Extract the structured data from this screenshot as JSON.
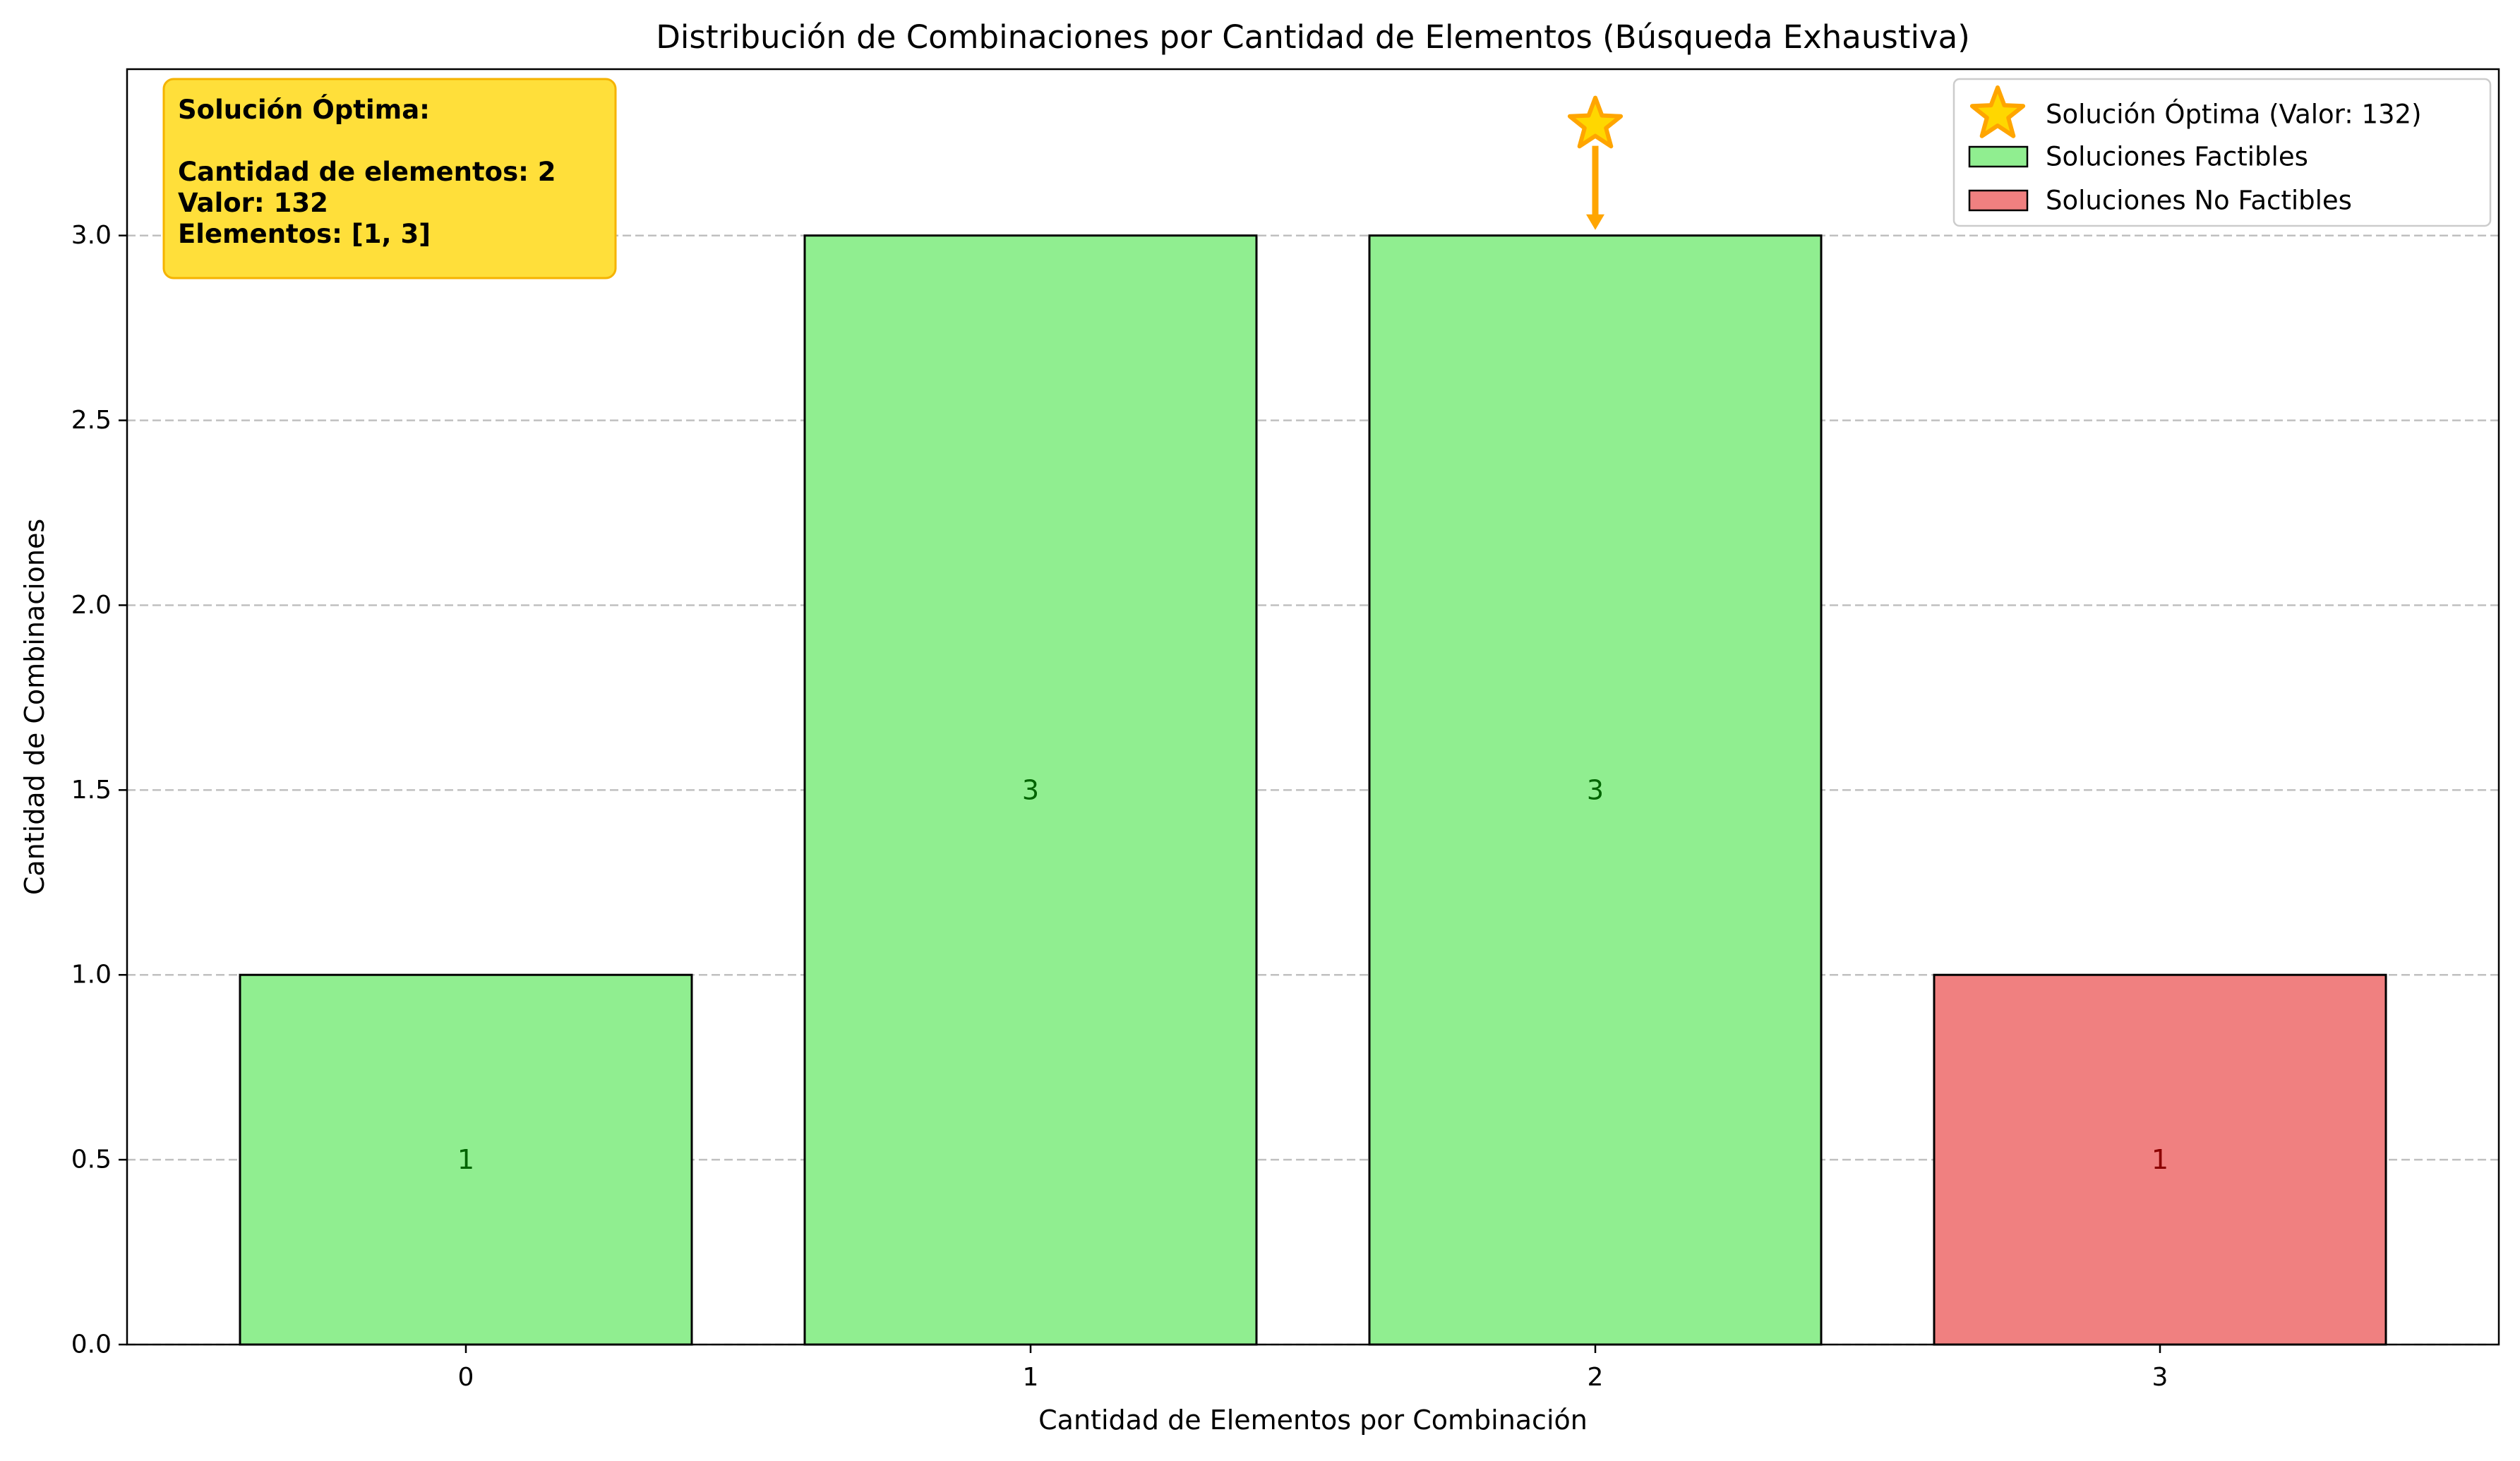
{
  "chart_data": {
    "type": "bar",
    "title": "Distribución de Combinaciones por Cantidad de Elementos (Búsqueda Exhaustiva)",
    "xlabel": "Cantidad de Elementos por Combinación",
    "ylabel": "Cantidad de Combinaciones",
    "categories": [
      "0",
      "1",
      "2",
      "3"
    ],
    "values": [
      1,
      3,
      3,
      1
    ],
    "feasible": [
      true,
      true,
      true,
      false
    ],
    "value_labels": [
      "1",
      "3",
      "3",
      "1"
    ],
    "ylim": [
      0,
      3.45
    ],
    "yticks": [
      0.0,
      0.5,
      1.0,
      1.5,
      2.0,
      2.5,
      3.0
    ],
    "ytick_labels": [
      "0.0",
      "0.5",
      "1.0",
      "1.5",
      "2.0",
      "2.5",
      "3.0"
    ],
    "grid": "y-dashed",
    "legend_position": "top-right",
    "legend": [
      {
        "key": "optimal",
        "label": "Solución Óptima (Valor: 132)"
      },
      {
        "key": "feasible",
        "label": "Soluciones Factibles"
      },
      {
        "key": "infeasible",
        "label": "Soluciones No Factibles"
      }
    ],
    "optimal_marker": {
      "category": "2",
      "star_y": 3.3,
      "arrow_tip_y": 3.0
    },
    "annotation_box": {
      "position": "top-left",
      "lines": [
        "Solución Óptima:",
        "",
        "Cantidad de elementos: 2",
        "Valor: 132",
        "Elementos: [1, 3]"
      ]
    },
    "colors": {
      "feasible": "#90ee90",
      "infeasible": "#f08080",
      "feasible_text": "#006400",
      "infeasible_text": "#8b0000",
      "optimal": "#ffa500",
      "star_fill": "#ffd700",
      "annotation_bg": "#ffdf3a",
      "annotation_border": "#f5b300",
      "grid": "#c0c0c0"
    }
  }
}
